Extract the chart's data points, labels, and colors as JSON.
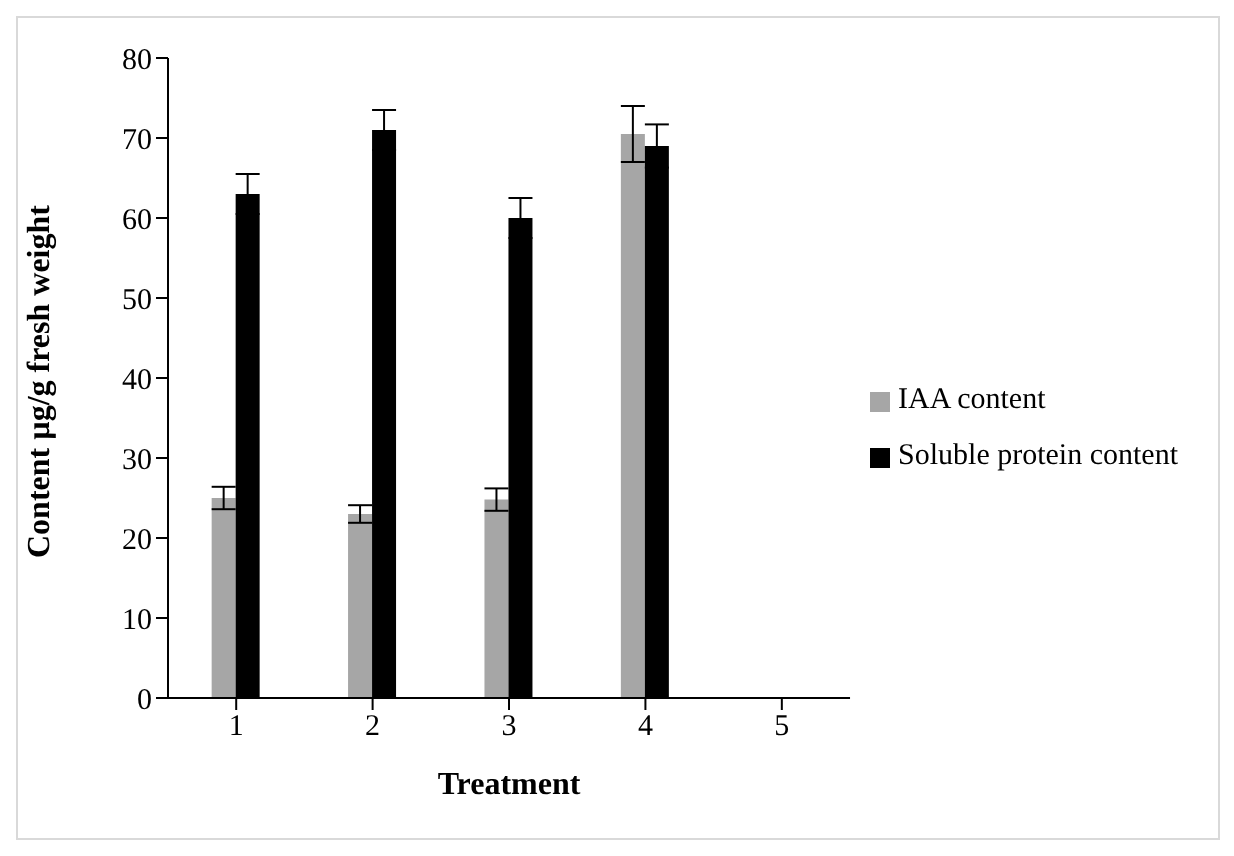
{
  "chart_data": {
    "type": "bar",
    "xlabel": "Treatment",
    "ylabel": "Content µg/g fresh weight",
    "categories": [
      "1",
      "2",
      "3",
      "4",
      "5"
    ],
    "series": [
      {
        "name": "IAA content",
        "color": "#a6a6a6",
        "values": [
          25,
          23,
          24.8,
          70.5,
          null
        ],
        "errors": [
          1.4,
          1.1,
          1.4,
          3.5,
          null
        ]
      },
      {
        "name": "Soluble protein content",
        "color": "#000000",
        "values": [
          63,
          71,
          60,
          69,
          null
        ],
        "errors": [
          2.5,
          2.5,
          2.5,
          2.7,
          null
        ]
      }
    ],
    "ylim": [
      0,
      80
    ],
    "yticks": [
      0,
      10,
      20,
      30,
      40,
      50,
      60,
      70,
      80
    ],
    "grid": false,
    "legend": "right"
  }
}
